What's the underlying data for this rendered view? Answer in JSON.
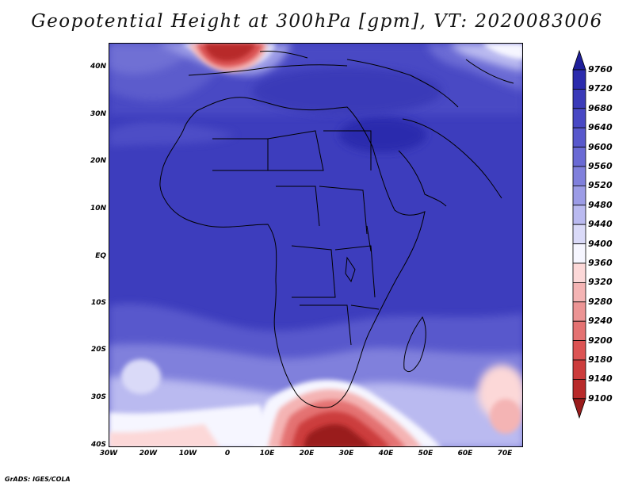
{
  "title": "Geopotential Height at 300hPa [gpm], VT: 2020083006",
  "footer": "GrADS: IGES/COLA",
  "lat_labels": [
    "40N",
    "30N",
    "20N",
    "10N",
    "EQ",
    "10S",
    "20S",
    "30S",
    "40S"
  ],
  "lon_labels": [
    "30W",
    "20W",
    "10W",
    "0",
    "10E",
    "20E",
    "30E",
    "40E",
    "50E",
    "60E",
    "70E"
  ],
  "colorbar": {
    "labels": [
      "9760",
      "9720",
      "9680",
      "9640",
      "9600",
      "9560",
      "9520",
      "9480",
      "9440",
      "9400",
      "9360",
      "9320",
      "9280",
      "9240",
      "9200",
      "9180",
      "9140",
      "9100"
    ],
    "colors": [
      "#1f1f9a",
      "#2b2bad",
      "#3a3ab8",
      "#4848c4",
      "#5858cc",
      "#6a6ad4",
      "#8080dc",
      "#9c9ce6",
      "#babaf0",
      "#dadaf8",
      "#f6f6ff",
      "#fcd8d8",
      "#f4b4b4",
      "#ec9494",
      "#e47272",
      "#dc5454",
      "#cc3c3c",
      "#b82a2a",
      "#9a1c1c"
    ]
  }
}
